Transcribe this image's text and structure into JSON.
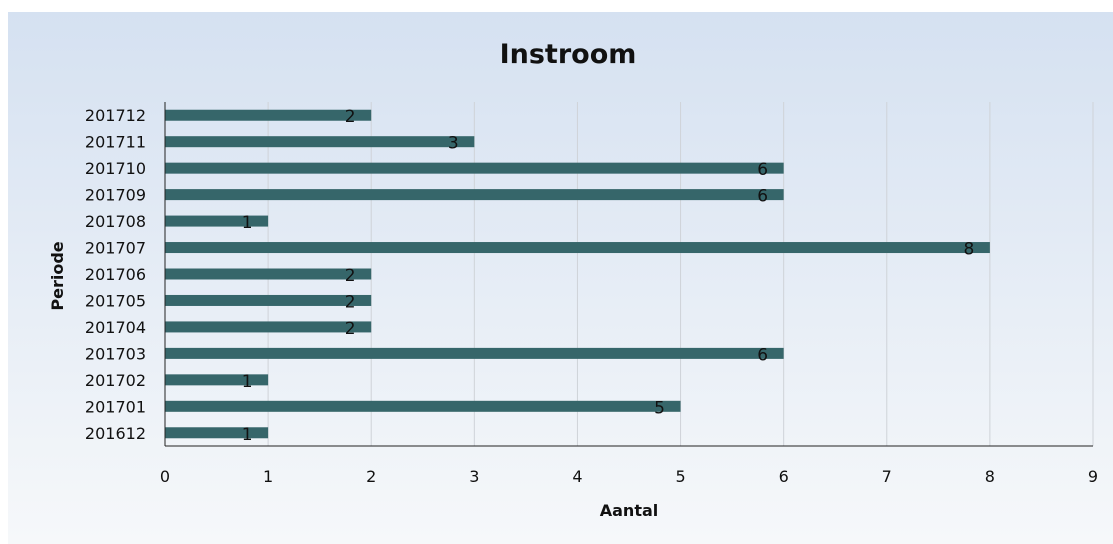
{
  "chart_data": {
    "type": "bar",
    "orientation": "horizontal",
    "title": "Instroom",
    "xlabel": "Aantal",
    "ylabel": "Periode",
    "categories": [
      "201612",
      "201701",
      "201702",
      "201703",
      "201704",
      "201705",
      "201706",
      "201707",
      "201708",
      "201709",
      "201710",
      "201711",
      "201712"
    ],
    "values": [
      1,
      5,
      1,
      6,
      2,
      2,
      2,
      8,
      1,
      6,
      6,
      3,
      2
    ],
    "xlim": [
      0,
      9
    ],
    "xticks": [
      "0",
      "1",
      "2",
      "3",
      "4",
      "5",
      "6",
      "7",
      "8",
      "9"
    ],
    "grid": "vertical",
    "legend": "none",
    "data_labels": true,
    "colors": {
      "bar": "#36666a",
      "background_top": "#d5e1f1",
      "background_bottom": "#f6f8fa",
      "grid": "#cfd3d8",
      "axis": "#222222",
      "text": "#111111"
    }
  }
}
